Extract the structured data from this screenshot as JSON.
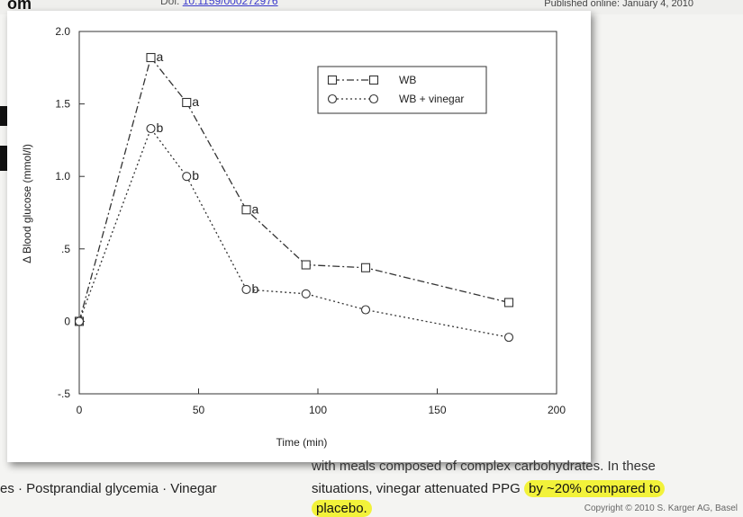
{
  "page": {
    "top_left": "om",
    "top_mid_prefix": "Doi:",
    "top_mid_link": "10.1159/000272976",
    "published": "Published online: January 4, 2010",
    "text_top": "with meals composed of complex carbohydrates. In these",
    "keywords": "es · Postprandial glycemia · Vinegar",
    "line2_plain": "situations, vinegar attenuated PPG",
    "line2_highlight": "by ~20% compared to",
    "line3_highlight": "placebo.",
    "copyright": "Copyright © 2010 S. Karger AG, Basel"
  },
  "chart_data": {
    "type": "line",
    "title": "",
    "xlabel": "Time (min)",
    "ylabel": "Δ Blood glucose (mmol/l)",
    "xlim": [
      0,
      200
    ],
    "ylim": [
      -0.5,
      2.0
    ],
    "xticks": [
      0,
      50,
      100,
      150,
      200
    ],
    "xtick_labels": [
      "0",
      "50",
      "100",
      "150",
      "200"
    ],
    "yticks": [
      -0.5,
      0,
      0.5,
      1.0,
      1.5,
      2.0
    ],
    "ytick_labels": [
      "-.5",
      "0",
      ".5",
      "1.0",
      "1.5",
      "2.0"
    ],
    "legend_position": "top-right",
    "series": [
      {
        "name": "WB",
        "marker": "square",
        "dash": "dashdot",
        "x": [
          0,
          30,
          45,
          70,
          95,
          120,
          180
        ],
        "y": [
          0,
          1.82,
          1.51,
          0.77,
          0.39,
          0.37,
          0.13
        ],
        "annotations": [
          "",
          "a",
          "a",
          "a",
          "",
          "",
          ""
        ]
      },
      {
        "name": "WB + vinegar",
        "marker": "circle",
        "dash": "dotted",
        "x": [
          0,
          30,
          45,
          70,
          95,
          120,
          180
        ],
        "y": [
          0,
          1.33,
          1.0,
          0.22,
          0.19,
          0.08,
          -0.11
        ],
        "annotations": [
          "",
          "b",
          "b",
          "b",
          "",
          "",
          ""
        ]
      }
    ]
  }
}
